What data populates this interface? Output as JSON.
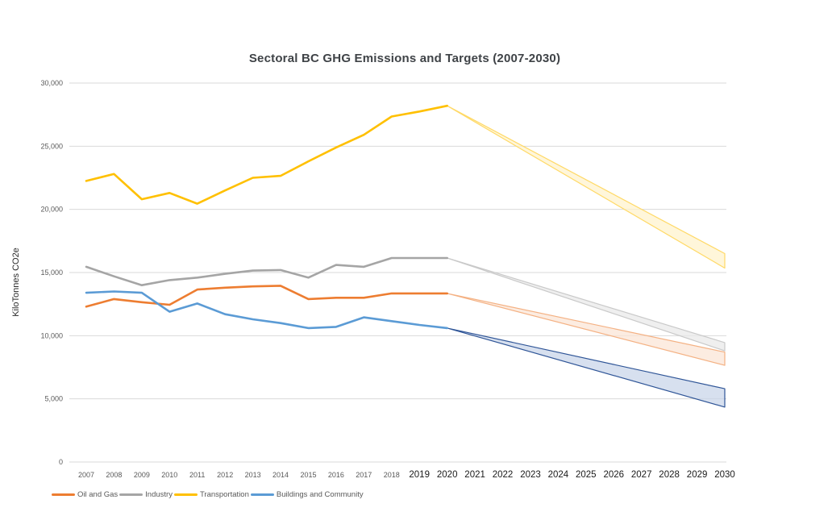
{
  "title": "Sectoral BC GHG Emissions and Targets (2007-2030)",
  "y_axis_title": "KiloTonnes CO2e",
  "chart_data": {
    "type": "line",
    "title": "Sectoral BC GHG Emissions and Targets (2007-2030)",
    "ylabel": "KiloTonnes CO2e",
    "ylim": [
      0,
      30000
    ],
    "ytick_step": 5000,
    "y_tick_labels": [
      "0",
      "5,000",
      "10,000",
      "15,000",
      "20,000",
      "25,000",
      "30,000"
    ],
    "grid": true,
    "gridline_color": "#D9D9D9",
    "legend_position": "bottom-left",
    "x": [
      "2007",
      "2008",
      "2009",
      "2010",
      "2011",
      "2012",
      "2013",
      "2014",
      "2015",
      "2016",
      "2017",
      "2018",
      "2019",
      "2020",
      "2021",
      "2022",
      "2023",
      "2024",
      "2025",
      "2026",
      "2027",
      "2028",
      "2029",
      "2030"
    ],
    "actual_data_last_year": "2020",
    "target_fan_start_year": "2020",
    "target_fan_end_year": "2030",
    "series": [
      {
        "name": "Oil and Gas",
        "color": "#ED7D31",
        "values": [
          12300,
          12900,
          12650,
          12450,
          13650,
          13800,
          13900,
          13950,
          12900,
          13000,
          13000,
          13350,
          13350,
          13350
        ],
        "target_2030_range": [
          7650,
          8700
        ],
        "fan_edge": "#F4B183",
        "fan_fill": "#FBE5D6"
      },
      {
        "name": "Industry",
        "color": "#A5A5A5",
        "values": [
          15450,
          14700,
          14000,
          14400,
          14600,
          14900,
          15150,
          15200,
          14600,
          15600,
          15450,
          16150,
          16150,
          16150
        ],
        "target_2030_range": [
          8800,
          9450
        ],
        "fan_edge": "#C9C9C9",
        "fan_fill": "#E9E9E9"
      },
      {
        "name": "Transportation",
        "color": "#FFC000",
        "values": [
          22250,
          22800,
          20800,
          21300,
          20450,
          21500,
          22500,
          22650,
          23800,
          24900,
          25900,
          27350,
          27750,
          28200
        ],
        "target_2030_range": [
          15350,
          16500
        ],
        "fan_edge": "#FFD966",
        "fan_fill": "#FFF2CC"
      },
      {
        "name": "Buildings and Community",
        "color": "#5B9BD5",
        "values": [
          13400,
          13500,
          13400,
          11900,
          12550,
          11700,
          11300,
          11000,
          10600,
          10700,
          11450,
          11150,
          10850,
          10600
        ],
        "target_2030_range": [
          4350,
          5800
        ],
        "fan_edge": "#2F5597",
        "fan_fill": "#C8D4E9"
      }
    ]
  }
}
